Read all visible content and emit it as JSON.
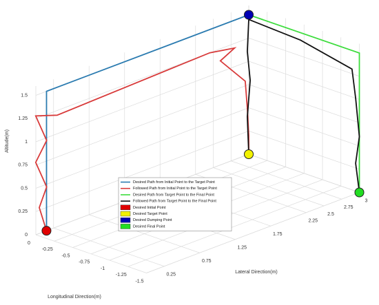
{
  "chart_data": {
    "type": "line3d",
    "xlabel": "Longitudinal Direction(m)",
    "ylabel": "Lateral Direction(m)",
    "zlabel": "Altitude(m)",
    "xlim": [
      -1.5,
      0
    ],
    "ylim": [
      0,
      3
    ],
    "zlim": [
      0,
      1.6
    ],
    "xticks": [
      0,
      -0.25,
      -0.5,
      -0.75,
      -1,
      -1.25,
      -1.5
    ],
    "yticks": [
      0.25,
      0.75,
      1.25,
      1.75,
      2.25,
      2.5,
      2.75,
      3
    ],
    "zticks": [
      0,
      0.25,
      0.5,
      0.75,
      1,
      1.25,
      1.5
    ],
    "grid": true,
    "series": [
      {
        "name": "Desired Path from Initial Point to the Target Point",
        "color": "#2b7bb0",
        "x": [
          0,
          0,
          0
        ],
        "y": [
          0.15,
          0.15,
          3
        ],
        "z": [
          0,
          1.5,
          1.5
        ]
      },
      {
        "name": "Followed Path from Initial Point to the Target Point",
        "color": "#d83a3a",
        "x": [
          0,
          0.05,
          -0.05,
          0.05,
          -0.05,
          0.05,
          0,
          0,
          0,
          0,
          0,
          0,
          0,
          0
        ],
        "y": [
          0.15,
          0.1,
          0.1,
          0.05,
          0.1,
          0.05,
          0.3,
          2.45,
          2.8,
          2.6,
          2.95,
          2.98,
          3,
          3
        ],
        "z": [
          0,
          0.25,
          0.5,
          0.75,
          1,
          1.25,
          1.2,
          1.25,
          1.2,
          1.12,
          0.8,
          0.5,
          0.2,
          0
        ]
      },
      {
        "name": "Desired Path from Target Point to the Final Point",
        "color": "#3ddc3d",
        "x": [
          0,
          -1.5,
          -1.5
        ],
        "y": [
          3,
          3,
          3
        ],
        "z": [
          1.5,
          1.5,
          0
        ]
      },
      {
        "name": "Followed Path from Target Point to the Final Point",
        "color": "#111111",
        "x": [
          0,
          0.02,
          -0.02,
          0.02,
          0,
          -0.7,
          -1.4,
          -1.45,
          -1.5,
          -1.45,
          -1.5
        ],
        "y": [
          3,
          3,
          3,
          3,
          3,
          3,
          3,
          3,
          3,
          3,
          3
        ],
        "z": [
          0,
          0.4,
          0.8,
          1.1,
          1.45,
          1.42,
          1.3,
          1.0,
          0.6,
          0.3,
          0
        ]
      }
    ],
    "points": [
      {
        "name": "Desired Initial Point",
        "color": "#e00000",
        "x": 0,
        "y": 0.15,
        "z": 0
      },
      {
        "name": "Desired Target Point",
        "color": "#f2f200",
        "x": 0,
        "y": 3,
        "z": 0
      },
      {
        "name": "Desired Dumping Point",
        "color": "#0000b4",
        "x": 0,
        "y": 3,
        "z": 1.5
      },
      {
        "name": "Desired Final Point",
        "color": "#22dd22",
        "x": -1.5,
        "y": 3,
        "z": 0
      }
    ]
  }
}
